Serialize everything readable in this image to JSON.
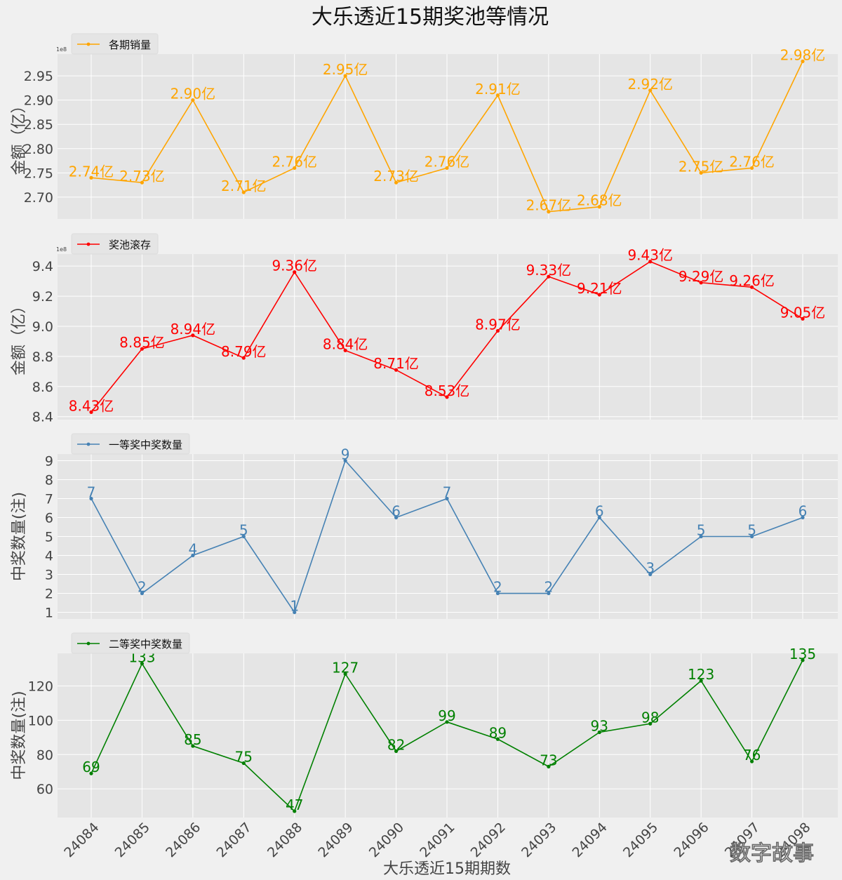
{
  "chart_data": {
    "title": "大乐透近15期奖池等情况",
    "type": "line",
    "xlabel": "大乐透近15期期数",
    "categories": [
      "24084",
      "24085",
      "24086",
      "24087",
      "24088",
      "24089",
      "24090",
      "24091",
      "24092",
      "24093",
      "24094",
      "24095",
      "24096",
      "24097",
      "24098"
    ],
    "panels": [
      {
        "type": "line",
        "name": "各期销量",
        "color": "#ffa500",
        "ylabel": "金额（亿）",
        "sci_label": "1e8",
        "ylim": [
          2.655,
          2.995
        ],
        "yticks": [
          2.7,
          2.75,
          2.8,
          2.85,
          2.9,
          2.95
        ],
        "ytick_labels": [
          "2.70",
          "2.75",
          "2.80",
          "2.85",
          "2.90",
          "2.95"
        ],
        "values": [
          2.74,
          2.73,
          2.9,
          2.71,
          2.76,
          2.95,
          2.73,
          2.76,
          2.91,
          2.67,
          2.68,
          2.92,
          2.75,
          2.76,
          2.98
        ],
        "labels": [
          "2.74亿",
          "2.73亿",
          "2.90亿",
          "2.71亿",
          "2.76亿",
          "2.95亿",
          "2.73亿",
          "2.76亿",
          "2.91亿",
          "2.67亿",
          "2.68亿",
          "2.92亿",
          "2.75亿",
          "2.76亿",
          "2.98亿"
        ]
      },
      {
        "type": "line",
        "name": "奖池滚存",
        "color": "#ff0000",
        "ylabel": "金额（亿）",
        "sci_label": "1e8",
        "ylim": [
          8.38,
          9.48
        ],
        "yticks": [
          8.4,
          8.6,
          8.8,
          9.0,
          9.2,
          9.4
        ],
        "ytick_labels": [
          "8.4",
          "8.6",
          "8.8",
          "9.0",
          "9.2",
          "9.4"
        ],
        "values": [
          8.43,
          8.85,
          8.94,
          8.79,
          9.36,
          8.84,
          8.71,
          8.53,
          8.97,
          9.33,
          9.21,
          9.43,
          9.29,
          9.26,
          9.05
        ],
        "labels": [
          "8.43亿",
          "8.85亿",
          "8.94亿",
          "8.79亿",
          "9.36亿",
          "8.84亿",
          "8.71亿",
          "8.53亿",
          "8.97亿",
          "9.33亿",
          "9.21亿",
          "9.43亿",
          "9.29亿",
          "9.26亿",
          "9.05亿"
        ]
      },
      {
        "type": "line",
        "name": "一等奖中奖数量",
        "color": "#4682b4",
        "ylabel": "中奖数量(注)",
        "ylim": [
          0.65,
          9.35
        ],
        "yticks": [
          1,
          2,
          3,
          4,
          5,
          6,
          7,
          8,
          9
        ],
        "ytick_labels": [
          "1",
          "2",
          "3",
          "4",
          "5",
          "6",
          "7",
          "8",
          "9"
        ],
        "values": [
          7,
          2,
          4,
          5,
          1,
          9,
          6,
          7,
          2,
          2,
          6,
          3,
          5,
          5,
          6
        ],
        "labels": [
          "7",
          "2",
          "4",
          "5",
          "1",
          "9",
          "6",
          "7",
          "2",
          "2",
          "6",
          "3",
          "5",
          "5",
          "6"
        ]
      },
      {
        "type": "line",
        "name": "二等奖中奖数量",
        "color": "#008000",
        "ylabel": "中奖数量(注)",
        "ylim": [
          43.3,
          139
        ],
        "yticks": [
          60,
          80,
          100,
          120
        ],
        "ytick_labels": [
          "60",
          "80",
          "100",
          "120"
        ],
        "values": [
          69,
          133,
          85,
          75,
          47,
          127,
          82,
          99,
          89,
          73,
          93,
          98,
          123,
          76,
          135
        ],
        "labels": [
          "69",
          "133",
          "85",
          "75",
          "47",
          "127",
          "82",
          "99",
          "89",
          "73",
          "93",
          "98",
          "123",
          "76",
          "135"
        ]
      }
    ]
  },
  "watermark": "数字故事"
}
